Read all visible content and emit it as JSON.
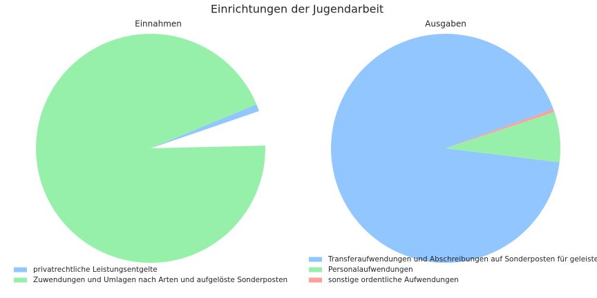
{
  "title": "Einrichtungen der Jugendarbeit",
  "chart_data": [
    {
      "type": "pie",
      "title": "Einnahmen",
      "startangle": 19,
      "categories": [
        "privatrechtliche Leistungsentgelte",
        "Zuwendungen und Umlagen nach Arten und aufgelöste Sonderposten"
      ],
      "values": [
        1.0,
        94.1
      ],
      "colors": [
        "#92c6ff",
        "#97f0aa"
      ]
    },
    {
      "type": "pie",
      "title": "Ausgaben",
      "startangle": 20,
      "categories": [
        "Transferaufwendungen und Abschreibungen auf Sonderposten für geleiste",
        "Personalaufwendungen",
        "sonstige ordentliche Aufwendungen"
      ],
      "values": [
        92.5,
        7.1,
        0.4
      ],
      "colors": [
        "#92c6ff",
        "#97f0aa",
        "#ff9f9a"
      ]
    }
  ]
}
